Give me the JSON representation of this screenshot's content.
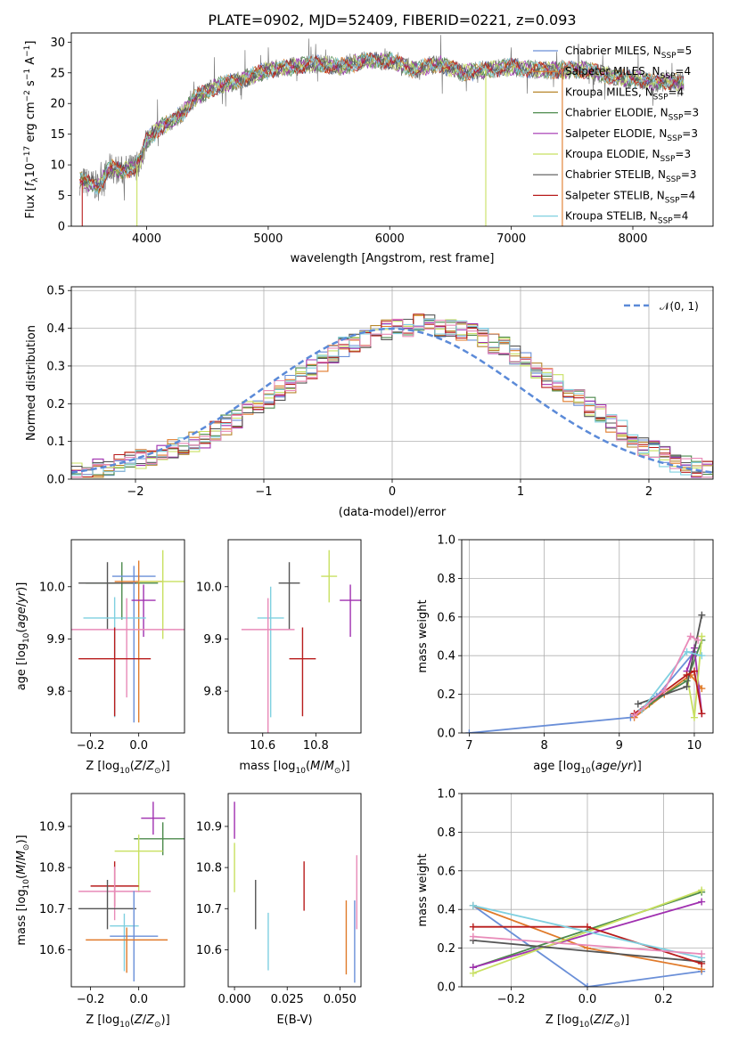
{
  "figure": {
    "title": "PLATE=0902, MJD=52409, FIBERID=0221, z=0.093"
  },
  "series_colors": {
    "chabrier_miles": "#6a8fd8",
    "salpeter_miles": "#e07a2a",
    "kroupa_miles": "#b8862b",
    "chabrier_elodie": "#4c8a4c",
    "salpeter_elodie": "#a030b0",
    "kroupa_elodie": "#c8e060",
    "chabrier_stelib": "#555555",
    "salpeter_stelib": "#b81c1c",
    "kroupa_stelib": "#7fd0e0",
    "pink_extra": "#e88ab8",
    "normal_dashed": "#5b8ad8"
  },
  "chart_data": [
    {
      "id": "spectrum",
      "type": "line",
      "xlabel": "wavelength [Angstrom, rest frame]",
      "ylabel": "Flux [f_λ10^−17 erg cm^−2 s^−1 A^−1]",
      "xlim": [
        3380,
        8660
      ],
      "ylim": [
        0,
        31.5
      ],
      "xticks": [
        "4000",
        "5000",
        "6000",
        "7000",
        "8000"
      ],
      "yticks": [
        "0",
        "5",
        "10",
        "15",
        "20",
        "25",
        "30"
      ],
      "grid": false,
      "legend_position": "right",
      "legend": [
        {
          "label": "Chabrier MILES, N_SSP=5",
          "color_key": "chabrier_miles"
        },
        {
          "label": "Salpeter MILES, N_SSP=4",
          "color_key": "salpeter_miles"
        },
        {
          "label": "Kroupa MILES, N_SSP=4",
          "color_key": "kroupa_miles"
        },
        {
          "label": "Chabrier ELODIE, N_SSP=3",
          "color_key": "chabrier_elodie"
        },
        {
          "label": "Salpeter ELODIE, N_SSP=3",
          "color_key": "salpeter_elodie"
        },
        {
          "label": "Kroupa ELODIE, N_SSP=3",
          "color_key": "kroupa_elodie"
        },
        {
          "label": "Chabrier STELIB, N_SSP=3",
          "color_key": "chabrier_stelib"
        },
        {
          "label": "Salpeter STELIB, N_SSP=4",
          "color_key": "salpeter_stelib"
        },
        {
          "label": "Kroupa STELIB, N_SSP=4",
          "color_key": "kroupa_stelib"
        }
      ],
      "continuum": {
        "x": [
          3450,
          3600,
          3700,
          3800,
          3900,
          3950,
          4000,
          4100,
          4200,
          4300,
          4400,
          4600,
          4800,
          5000,
          5200,
          5400,
          5600,
          5800,
          6000,
          6200,
          6400,
          6600,
          6800,
          7000,
          7200,
          7400,
          7600,
          7800,
          8000,
          8200,
          8400
        ],
        "y": [
          7.5,
          6.5,
          9.5,
          9.0,
          9.5,
          11.0,
          14.0,
          16.0,
          17.0,
          18.5,
          21.0,
          23.0,
          24.0,
          25.5,
          26.0,
          26.5,
          26.0,
          27.0,
          27.0,
          25.5,
          26.5,
          25.0,
          25.5,
          26.0,
          25.5,
          25.5,
          25.5,
          24.5,
          24.0,
          23.5,
          23.5
        ]
      }
    },
    {
      "id": "residual_hist",
      "type": "line",
      "xlabel": "(data-model)/error",
      "ylabel": "Normed distribution",
      "xlim": [
        -2.5,
        2.5
      ],
      "ylim": [
        0,
        0.51
      ],
      "xticks": [
        "−2",
        "−1",
        "0",
        "1",
        "2"
      ],
      "yticks": [
        "0.0",
        "0.1",
        "0.2",
        "0.3",
        "0.4",
        "0.5"
      ],
      "grid": true,
      "legend_position": "top-right",
      "legend": [
        {
          "label": "𝒩(0, 1)",
          "color_key": "normal_dashed"
        }
      ],
      "bin_width": 0.1,
      "bin_start": -2.5,
      "envelope": [
        0.018,
        0.022,
        0.026,
        0.032,
        0.04,
        0.048,
        0.055,
        0.062,
        0.07,
        0.08,
        0.09,
        0.1,
        0.11,
        0.13,
        0.145,
        0.16,
        0.18,
        0.2,
        0.215,
        0.235,
        0.25,
        0.27,
        0.29,
        0.31,
        0.33,
        0.35,
        0.36,
        0.375,
        0.385,
        0.395,
        0.4,
        0.405,
        0.41,
        0.41,
        0.405,
        0.4,
        0.395,
        0.385,
        0.375,
        0.36,
        0.35,
        0.33,
        0.31,
        0.29,
        0.27,
        0.25,
        0.23,
        0.21,
        0.19,
        0.17,
        0.15,
        0.13,
        0.11,
        0.09,
        0.075,
        0.06,
        0.045,
        0.035,
        0.028,
        0.022,
        0.016
      ]
    },
    {
      "id": "age_vs_Z",
      "type": "scatter",
      "xlabel": "Z [log10(Z/Z⊙)]",
      "ylabel": "age  [log10(age/yr)]",
      "xlim": [
        -0.28,
        0.19
      ],
      "ylim": [
        9.72,
        10.09
      ],
      "xticks": [
        "−0.2",
        "0.0"
      ],
      "yticks": [
        "9.8",
        "9.9",
        "10.0"
      ],
      "points": [
        {
          "x": -0.07,
          "y": 10.007,
          "xerr": 0.15,
          "yerr": [
            0.07,
            0.04
          ],
          "color_key": "chabrier_elodie"
        },
        {
          "x": -0.13,
          "y": 10.007,
          "xerr": 0.12,
          "yerr": [
            0.09,
            0.04
          ],
          "color_key": "chabrier_stelib"
        },
        {
          "x": -0.02,
          "y": 10.02,
          "xerr": 0.09,
          "yerr": [
            0.28,
            0.02
          ],
          "color_key": "chabrier_miles"
        },
        {
          "x": 0.0,
          "y": 10.01,
          "xerr": 0.1,
          "yerr": [
            0.27,
            0.04
          ],
          "color_key": "salpeter_miles"
        },
        {
          "x": 0.1,
          "y": 10.01,
          "xerr": 0.1,
          "yerr": [
            0.11,
            0.06
          ],
          "color_key": "kroupa_elodie"
        },
        {
          "x": 0.02,
          "y": 9.974,
          "xerr": 0.05,
          "yerr": [
            0.07,
            0.03
          ],
          "color_key": "salpeter_elodie"
        },
        {
          "x": -0.1,
          "y": 9.94,
          "xerr": 0.13,
          "yerr": [
            0.19,
            0.04
          ],
          "color_key": "kroupa_stelib"
        },
        {
          "x": -0.05,
          "y": 9.918,
          "xerr": 0.25,
          "yerr": [
            0.13,
            0.06
          ],
          "color_key": "pink_extra"
        },
        {
          "x": -0.1,
          "y": 9.862,
          "xerr": 0.15,
          "yerr": [
            0.11,
            0.06
          ],
          "color_key": "salpeter_stelib"
        }
      ]
    },
    {
      "id": "age_vs_mass",
      "type": "scatter",
      "xlabel": "mass [log10(M/M⊙)]",
      "ylabel": "",
      "xlim": [
        10.47,
        10.97
      ],
      "ylim": [
        9.72,
        10.09
      ],
      "xticks": [
        "10.6",
        "10.8"
      ],
      "yticks": [
        "9.8",
        "9.9",
        "10.0"
      ],
      "points": [
        {
          "x": 10.85,
          "y": 10.02,
          "xerr": 0.03,
          "yerr": [
            0.05,
            0.05
          ],
          "color_key": "kroupa_elodie"
        },
        {
          "x": 10.7,
          "y": 10.007,
          "xerr": 0.04,
          "yerr": [
            0.09,
            0.04
          ],
          "color_key": "chabrier_stelib"
        },
        {
          "x": 10.93,
          "y": 9.974,
          "xerr": 0.04,
          "yerr": [
            0.07,
            0.03
          ],
          "color_key": "salpeter_elodie"
        },
        {
          "x": 10.63,
          "y": 9.94,
          "xerr": 0.05,
          "yerr": [
            0.19,
            0.06
          ],
          "color_key": "kroupa_stelib"
        },
        {
          "x": 10.62,
          "y": 9.918,
          "xerr": 0.1,
          "yerr": [
            0.27,
            0.06
          ],
          "color_key": "pink_extra"
        },
        {
          "x": 10.75,
          "y": 9.862,
          "xerr": 0.05,
          "yerr": [
            0.11,
            0.06
          ],
          "color_key": "salpeter_stelib"
        }
      ]
    },
    {
      "id": "mass_weight_vs_age",
      "type": "line",
      "xlabel": "age  [log10(age/yr)]",
      "ylabel": "mass weight",
      "xlim": [
        6.9,
        10.25
      ],
      "ylim": [
        0,
        1.0
      ],
      "xticks": [
        "7",
        "8",
        "9",
        "10"
      ],
      "yticks": [
        "0.0",
        "0.2",
        "0.4",
        "0.6",
        "0.8",
        "1.0"
      ],
      "grid": true,
      "series": [
        {
          "color_key": "chabrier_miles",
          "x": [
            7.0,
            9.15,
            9.5,
            10.0
          ],
          "y": [
            0.0,
            0.08,
            0.19,
            0.42
          ]
        },
        {
          "color_key": "salpeter_miles",
          "x": [
            9.2,
            9.6,
            9.95,
            10.1
          ],
          "y": [
            0.08,
            0.2,
            0.3,
            0.23
          ]
        },
        {
          "color_key": "chabrier_elodie",
          "x": [
            9.4,
            9.9,
            10.1
          ],
          "y": [
            0.15,
            0.27,
            0.48
          ]
        },
        {
          "color_key": "salpeter_elodie",
          "x": [
            9.9,
            10.0,
            10.1
          ],
          "y": [
            0.32,
            0.44,
            0.1
          ]
        },
        {
          "color_key": "kroupa_elodie",
          "x": [
            9.9,
            10.0,
            10.1
          ],
          "y": [
            0.3,
            0.08,
            0.5
          ]
        },
        {
          "color_key": "chabrier_stelib",
          "x": [
            9.25,
            9.9,
            10.1
          ],
          "y": [
            0.15,
            0.24,
            0.61
          ]
        },
        {
          "color_key": "salpeter_stelib",
          "x": [
            9.2,
            9.9,
            10.0,
            10.1
          ],
          "y": [
            0.1,
            0.3,
            0.32,
            0.1
          ]
        },
        {
          "color_key": "kroupa_stelib",
          "x": [
            9.3,
            9.9,
            10.1
          ],
          "y": [
            0.12,
            0.42,
            0.4
          ]
        },
        {
          "color_key": "pink_extra",
          "x": [
            9.2,
            9.6,
            9.95,
            10.05
          ],
          "y": [
            0.09,
            0.22,
            0.5,
            0.48
          ]
        }
      ]
    },
    {
      "id": "mass_vs_Z",
      "type": "scatter",
      "xlabel": "Z [log10(Z/Z⊙)]",
      "ylabel": "mass [log10(M/M⊙)]",
      "xlim": [
        -0.28,
        0.19
      ],
      "ylim": [
        10.51,
        10.98
      ],
      "xticks": [
        "−0.2",
        "0.0"
      ],
      "yticks": [
        "10.6",
        "10.7",
        "10.8",
        "10.9"
      ],
      "points": [
        {
          "x": 0.06,
          "y": 10.92,
          "xerr": 0.05,
          "yerr": [
            0.04,
            0.04
          ],
          "color_key": "salpeter_elodie"
        },
        {
          "x": 0.1,
          "y": 10.87,
          "xerr": 0.12,
          "yerr": [
            0.04,
            0.04
          ],
          "color_key": "chabrier_elodie"
        },
        {
          "x": 0.0,
          "y": 10.84,
          "xerr": 0.1,
          "yerr": [
            0.1,
            0.04
          ],
          "color_key": "kroupa_elodie"
        },
        {
          "x": -0.1,
          "y": 10.755,
          "xerr": 0.1,
          "yerr": [
            0.05,
            0.06
          ],
          "color_key": "salpeter_stelib"
        },
        {
          "x": -0.1,
          "y": 10.742,
          "xerr": 0.15,
          "yerr": [
            0.07,
            0.06
          ],
          "color_key": "pink_extra"
        },
        {
          "x": -0.13,
          "y": 10.7,
          "xerr": 0.12,
          "yerr": [
            0.05,
            0.07
          ],
          "color_key": "chabrier_stelib"
        },
        {
          "x": -0.06,
          "y": 10.658,
          "xerr": 0.06,
          "yerr": [
            0.11,
            0.03
          ],
          "color_key": "kroupa_stelib"
        },
        {
          "x": -0.02,
          "y": 10.633,
          "xerr": 0.1,
          "yerr": [
            0.11,
            0.11
          ],
          "color_key": "chabrier_miles"
        },
        {
          "x": -0.05,
          "y": 10.624,
          "xerr": 0.17,
          "yerr": [
            0.08,
            0.03
          ],
          "color_key": "salpeter_miles"
        }
      ]
    },
    {
      "id": "mass_vs_ebv",
      "type": "scatter",
      "xlabel": "E(B-V)",
      "ylabel": "",
      "xlim": [
        -0.003,
        0.06
      ],
      "ylim": [
        10.51,
        10.98
      ],
      "xticks": [
        "0.000",
        "0.025",
        "0.050"
      ],
      "yticks": [
        "10.6",
        "10.7",
        "10.8",
        "10.9"
      ],
      "points": [
        {
          "x": 0.0,
          "y": 10.92,
          "xerr": 0,
          "yerr": [
            0.05,
            0.04
          ],
          "color_key": "salpeter_elodie"
        },
        {
          "x": 0.0,
          "y": 10.8,
          "xerr": 0,
          "yerr": [
            0.06,
            0.06
          ],
          "color_key": "kroupa_elodie"
        },
        {
          "x": 0.033,
          "y": 10.755,
          "xerr": 0,
          "yerr": [
            0.06,
            0.06
          ],
          "color_key": "salpeter_stelib"
        },
        {
          "x": 0.01,
          "y": 10.71,
          "xerr": 0,
          "yerr": [
            0.06,
            0.06
          ],
          "color_key": "chabrier_stelib"
        },
        {
          "x": 0.016,
          "y": 10.62,
          "xerr": 0,
          "yerr": [
            0.07,
            0.07
          ],
          "color_key": "kroupa_stelib"
        },
        {
          "x": 0.057,
          "y": 10.62,
          "xerr": 0,
          "yerr": [
            0.1,
            0.1
          ],
          "color_key": "chabrier_miles"
        },
        {
          "x": 0.053,
          "y": 10.63,
          "xerr": 0,
          "yerr": [
            0.09,
            0.09
          ],
          "color_key": "salpeter_miles"
        },
        {
          "x": 0.058,
          "y": 10.74,
          "xerr": 0,
          "yerr": [
            0.09,
            0.09
          ],
          "color_key": "pink_extra"
        }
      ]
    },
    {
      "id": "mass_weight_vs_Z",
      "type": "line",
      "xlabel": "Z [log10(Z/Z⊙)]",
      "ylabel": "mass weight",
      "xlim": [
        -0.33,
        0.33
      ],
      "ylim": [
        0,
        1.0
      ],
      "xticks": [
        "−0.2",
        "0.0",
        "0.2"
      ],
      "yticks": [
        "0.0",
        "0.2",
        "0.4",
        "0.6",
        "0.8",
        "1.0"
      ],
      "grid": true,
      "series": [
        {
          "color_key": "chabrier_miles",
          "x": [
            -0.3,
            0.0,
            0.3
          ],
          "y": [
            0.42,
            0.0,
            0.08
          ]
        },
        {
          "color_key": "salpeter_miles",
          "x": [
            -0.3,
            0.0,
            0.3
          ],
          "y": [
            0.42,
            0.2,
            0.09
          ]
        },
        {
          "color_key": "chabrier_elodie",
          "x": [
            -0.3,
            0.3
          ],
          "y": [
            0.1,
            0.49
          ]
        },
        {
          "color_key": "salpeter_elodie",
          "x": [
            -0.3,
            0.3
          ],
          "y": [
            0.1,
            0.44
          ]
        },
        {
          "color_key": "kroupa_elodie",
          "x": [
            -0.3,
            0.3
          ],
          "y": [
            0.07,
            0.5
          ]
        },
        {
          "color_key": "chabrier_stelib",
          "x": [
            -0.3,
            0.3
          ],
          "y": [
            0.24,
            0.13
          ]
        },
        {
          "color_key": "salpeter_stelib",
          "x": [
            -0.3,
            0.0,
            0.3
          ],
          "y": [
            0.31,
            0.31,
            0.12
          ]
        },
        {
          "color_key": "kroupa_stelib",
          "x": [
            -0.3,
            0.3
          ],
          "y": [
            0.42,
            0.15
          ]
        },
        {
          "color_key": "pink_extra",
          "x": [
            -0.3,
            0.3
          ],
          "y": [
            0.26,
            0.17
          ]
        }
      ]
    }
  ]
}
